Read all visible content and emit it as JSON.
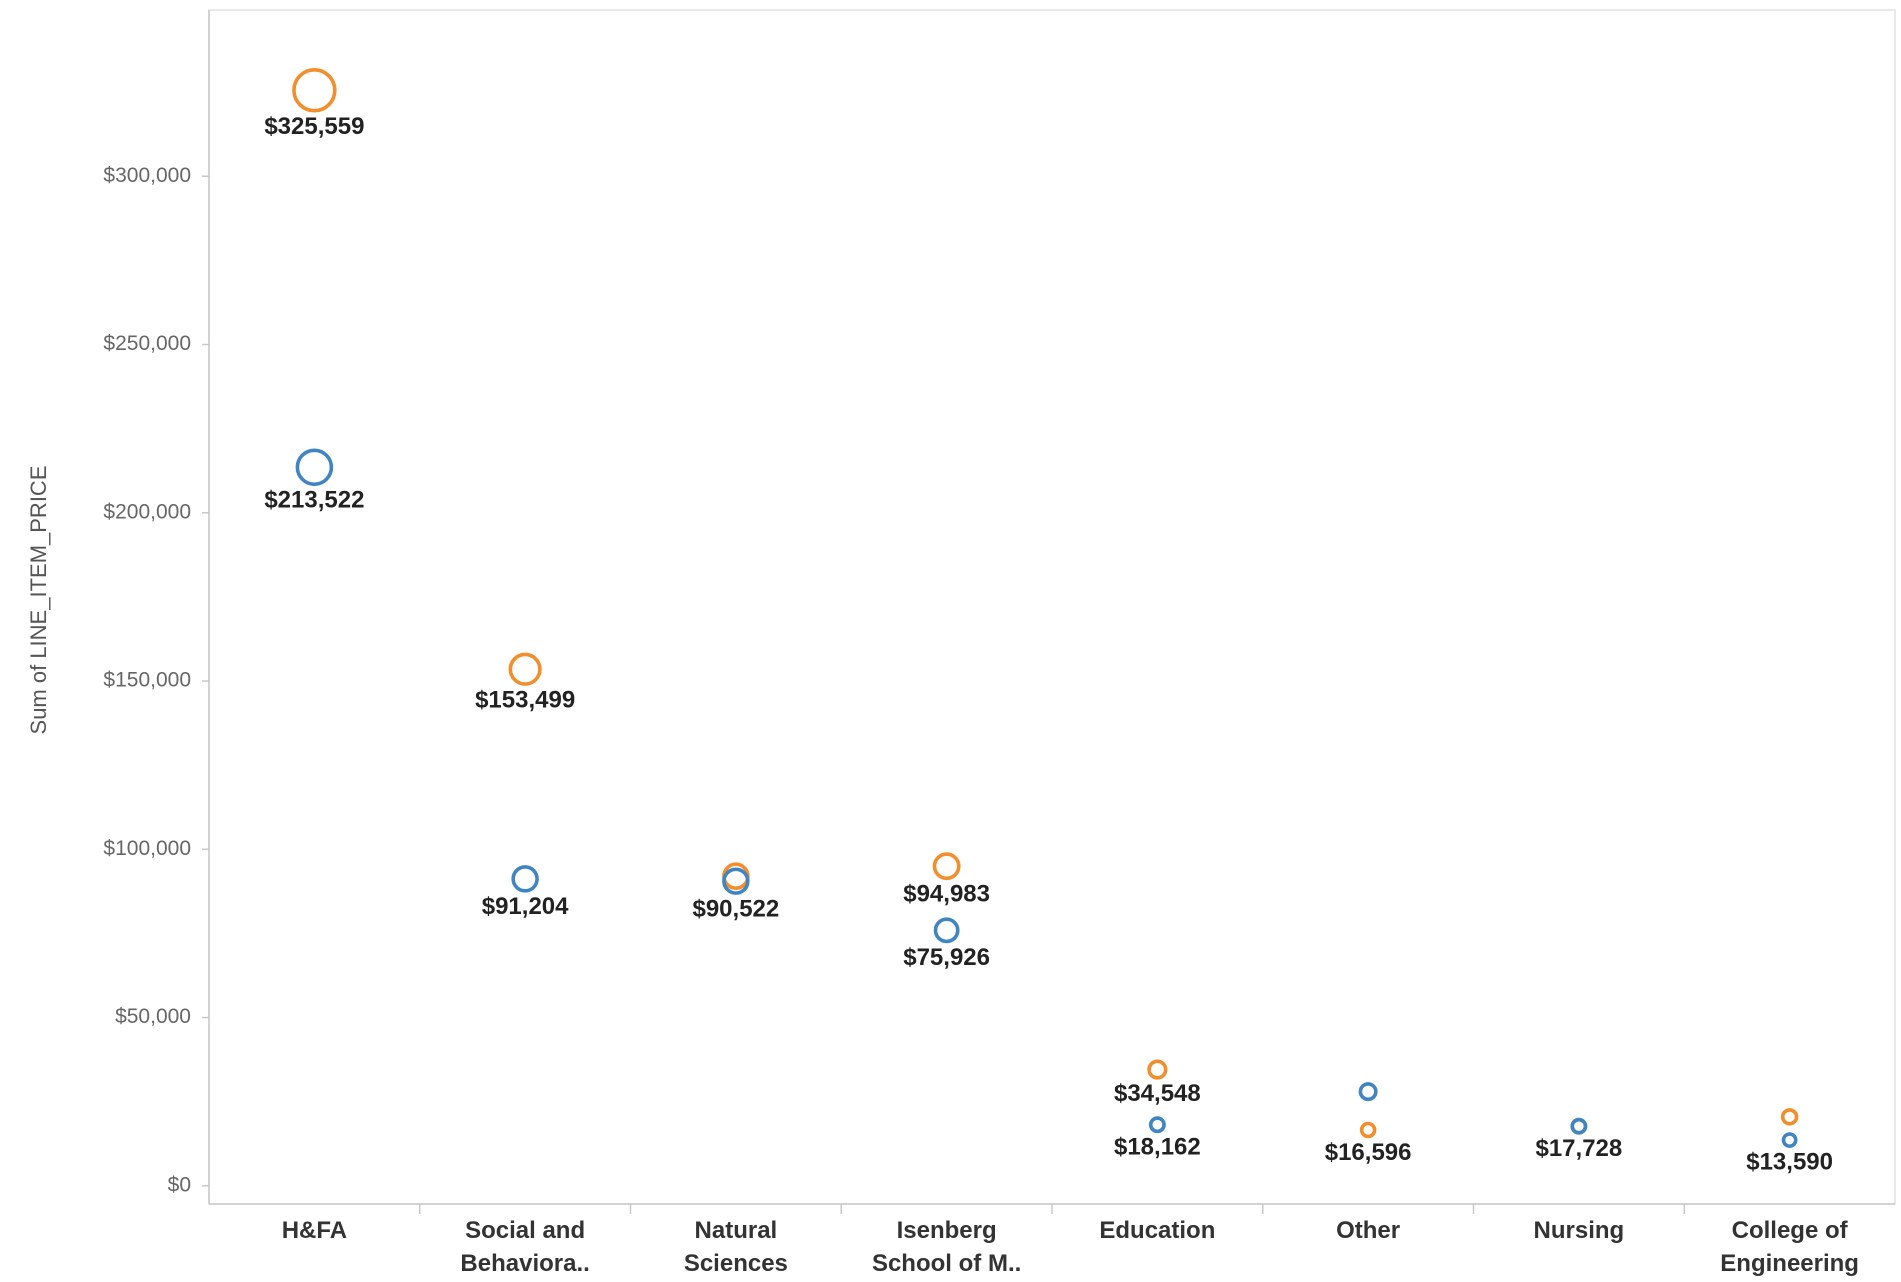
{
  "chart_data": {
    "type": "scatter",
    "y_label": "Sum of LINE_ITEM_PRICE",
    "categories": [
      "H&FA",
      "Social and\nBehaviora..",
      "Natural\nSciences",
      "Isenberg\nSchool of M..",
      "Education",
      "Other",
      "Nursing",
      "College of\nEngineering"
    ],
    "series": [
      {
        "color": "#f28e2b",
        "values": [
          325559,
          153499,
          92000,
          94983,
          34548,
          16596,
          17700,
          20500
        ],
        "value_labels": [
          "$325,559",
          "$153,499",
          null,
          "$94,983",
          "$34,548",
          "$16,596",
          null,
          null
        ]
      },
      {
        "color": "#3f85c4",
        "values": [
          213522,
          91204,
          90522,
          75926,
          18162,
          28000,
          17728,
          13590
        ],
        "value_labels": [
          "$213,522",
          "$91,204",
          "$90,522",
          "$75,926",
          "$18,162",
          null,
          "$17,728",
          "$13,590"
        ]
      }
    ],
    "ylim": [
      -5400,
      349400
    ],
    "yticks": [
      {
        "value": 0,
        "label": "$0"
      },
      {
        "value": 50000,
        "label": "$50,000"
      },
      {
        "value": 100000,
        "label": "$100,000"
      },
      {
        "value": 150000,
        "label": "$150,000"
      },
      {
        "value": 200000,
        "label": "$200,000"
      },
      {
        "value": 250000,
        "label": "$250,000"
      },
      {
        "value": 300000,
        "label": "$300,000"
      }
    ]
  }
}
